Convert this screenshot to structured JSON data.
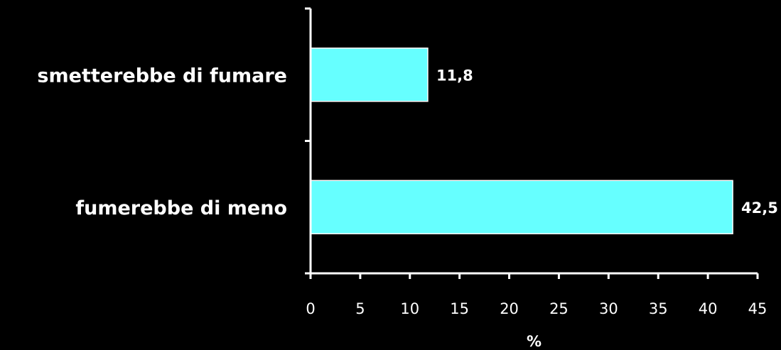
{
  "chart_data": {
    "type": "bar",
    "orientation": "horizontal",
    "categories": [
      "smetterebbe di fumare",
      "fumerebbe di meno"
    ],
    "values": [
      11.8,
      42.5
    ],
    "value_labels": [
      "11,8",
      "42,5"
    ],
    "xlabel": "%",
    "ylabel": "",
    "title": "",
    "xlim": [
      0,
      45
    ],
    "xticks": [
      0,
      5,
      10,
      15,
      20,
      25,
      30,
      35,
      40,
      45
    ],
    "xtick_labels": [
      "0",
      "5",
      "10",
      "15",
      "20",
      "25",
      "30",
      "35",
      "40",
      "45"
    ],
    "grid": false,
    "legend": "none",
    "colors": {
      "background": "#000000",
      "bar": "#66ffff",
      "bar_edge": "#ffffff",
      "axis": "#ffffff",
      "text": "#ffffff"
    }
  }
}
